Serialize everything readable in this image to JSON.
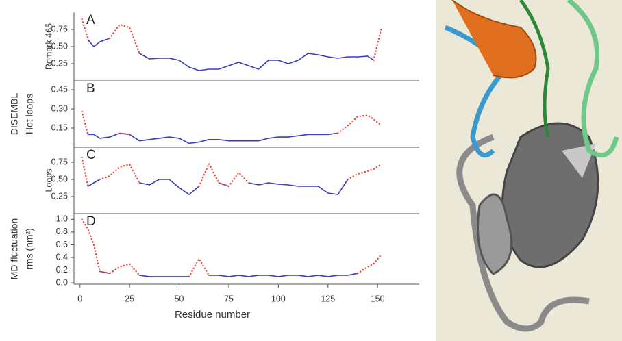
{
  "chart_data": [
    {
      "type": "line",
      "panel": "A",
      "y_label": [
        "Remark 465"
      ],
      "x": [
        1,
        4,
        7,
        10,
        15,
        20,
        25,
        30,
        35,
        40,
        45,
        50,
        55,
        60,
        65,
        70,
        75,
        80,
        85,
        90,
        95,
        100,
        105,
        110,
        115,
        120,
        125,
        130,
        135,
        140,
        145,
        148,
        152
      ],
      "xlim": [
        -3,
        171
      ],
      "ylim": [
        0,
        1
      ],
      "yticks": [
        0.25,
        {
          "value": 0.5,
          "label": "0.50"
        },
        0.75
      ],
      "series": [
        {
          "color": "#3b3bbd",
          "values": [
            null,
            0.6,
            0.5,
            0.57,
            0.62,
            null,
            null,
            0.4,
            0.32,
            0.33,
            0.33,
            0.3,
            0.2,
            0.15,
            0.17,
            0.17,
            0.22,
            0.27,
            0.22,
            0.17,
            0.3,
            0.3,
            0.25,
            0.3,
            0.4,
            0.38,
            0.35,
            0.33,
            0.35,
            0.35,
            0.36,
            0.3,
            null
          ]
        },
        {
          "color": "#ef4b3c",
          "values": [
            0.9,
            0.62,
            null,
            null,
            0.62,
            0.82,
            0.78,
            0.4,
            null,
            null,
            null,
            null,
            null,
            null,
            null,
            null,
            null,
            null,
            null,
            null,
            null,
            null,
            null,
            null,
            null,
            null,
            null,
            null,
            null,
            null,
            null,
            0.3,
            0.78
          ]
        }
      ]
    },
    {
      "type": "line",
      "panel": "B",
      "y_label": [
        "DISEMBL",
        "Hot loops"
      ],
      "x": [
        1,
        4,
        7,
        10,
        15,
        20,
        25,
        30,
        35,
        40,
        45,
        50,
        55,
        60,
        65,
        70,
        75,
        80,
        85,
        90,
        95,
        100,
        105,
        110,
        115,
        120,
        125,
        130,
        135,
        140,
        145,
        148,
        152
      ],
      "xlim": [
        -3,
        171
      ],
      "ylim": [
        0,
        0.52
      ],
      "yticks": [
        0.15,
        {
          "value": 0.3,
          "label": "0.30"
        },
        0.45
      ],
      "series": [
        {
          "color": "#3b3bbd",
          "values": [
            null,
            0.1,
            0.1,
            0.07,
            0.08,
            0.11,
            0.1,
            0.05,
            0.06,
            0.07,
            0.08,
            0.07,
            0.03,
            0.04,
            0.06,
            0.06,
            0.05,
            0.05,
            0.05,
            0.05,
            0.07,
            0.08,
            0.08,
            0.09,
            0.1,
            0.1,
            0.1,
            0.11,
            null,
            null,
            null,
            null,
            null
          ]
        },
        {
          "color": "#ef4b3c",
          "values": [
            0.28,
            0.1,
            null,
            null,
            null,
            0.11,
            0.1,
            null,
            null,
            null,
            null,
            null,
            null,
            null,
            null,
            null,
            null,
            null,
            null,
            null,
            null,
            null,
            null,
            null,
            null,
            null,
            null,
            0.11,
            0.17,
            0.24,
            0.25,
            0.22,
            0.17
          ]
        }
      ]
    },
    {
      "type": "line",
      "panel": "C",
      "y_label": [
        "Loops"
      ],
      "x": [
        1,
        4,
        7,
        10,
        15,
        20,
        25,
        30,
        35,
        40,
        45,
        50,
        55,
        60,
        65,
        70,
        75,
        80,
        85,
        90,
        95,
        100,
        105,
        110,
        115,
        120,
        125,
        130,
        135,
        140,
        145,
        148,
        152
      ],
      "xlim": [
        -3,
        171
      ],
      "ylim": [
        0,
        0.97
      ],
      "yticks": [
        0.25,
        {
          "value": 0.5,
          "label": "0.50"
        },
        0.75
      ],
      "series": [
        {
          "color": "#3b3bbd",
          "values": [
            null,
            0.4,
            0.45,
            0.5,
            null,
            null,
            null,
            0.45,
            0.42,
            0.5,
            0.5,
            0.38,
            0.28,
            0.4,
            null,
            0.45,
            0.4,
            null,
            0.45,
            0.42,
            0.45,
            0.43,
            0.42,
            0.4,
            0.4,
            0.4,
            0.3,
            0.28,
            0.5,
            null,
            null,
            null,
            null
          ]
        },
        {
          "color": "#ef4b3c",
          "values": [
            0.82,
            0.4,
            null,
            0.5,
            0.55,
            0.68,
            0.72,
            0.45,
            null,
            null,
            null,
            null,
            null,
            0.4,
            0.73,
            0.45,
            0.4,
            0.6,
            0.45,
            null,
            null,
            null,
            null,
            null,
            null,
            null,
            null,
            null,
            0.5,
            0.58,
            0.62,
            0.65,
            0.72
          ]
        }
      ]
    },
    {
      "type": "line",
      "panel": "D",
      "y_label": [
        "MD fluctuation",
        "rms (nm²)"
      ],
      "x_label": "Residue number",
      "x": [
        1,
        4,
        7,
        10,
        15,
        20,
        25,
        30,
        35,
        40,
        45,
        50,
        55,
        60,
        65,
        70,
        75,
        80,
        85,
        90,
        95,
        100,
        105,
        110,
        115,
        120,
        125,
        130,
        135,
        140,
        145,
        148,
        152
      ],
      "xlim": [
        -3,
        171
      ],
      "xticks": [
        0,
        25,
        50,
        75,
        100,
        125,
        150
      ],
      "ylim": [
        -0.02,
        1.09
      ],
      "yticks": [
        {
          "value": 0,
          "label": "0.0"
        },
        0.2,
        0.4,
        0.6,
        0.8,
        {
          "value": 1,
          "label": "1.0"
        }
      ],
      "series": [
        {
          "color": "#3b3bbd",
          "values": [
            null,
            null,
            null,
            0.18,
            0.15,
            null,
            null,
            0.12,
            0.1,
            0.1,
            0.1,
            0.1,
            0.1,
            null,
            0.12,
            0.12,
            0.1,
            0.12,
            0.1,
            0.12,
            0.12,
            0.1,
            0.12,
            0.12,
            0.1,
            0.12,
            0.1,
            0.12,
            0.12,
            0.15,
            null,
            null,
            null
          ]
        },
        {
          "color": "#ef4b3c",
          "values": [
            1,
            0.85,
            0.6,
            0.18,
            0.15,
            0.25,
            0.3,
            0.12,
            null,
            null,
            null,
            null,
            0.1,
            0.38,
            0.12,
            null,
            null,
            null,
            null,
            null,
            null,
            null,
            null,
            null,
            null,
            null,
            null,
            null,
            null,
            0.15,
            0.25,
            0.3,
            0.45
          ]
        }
      ]
    }
  ]
}
